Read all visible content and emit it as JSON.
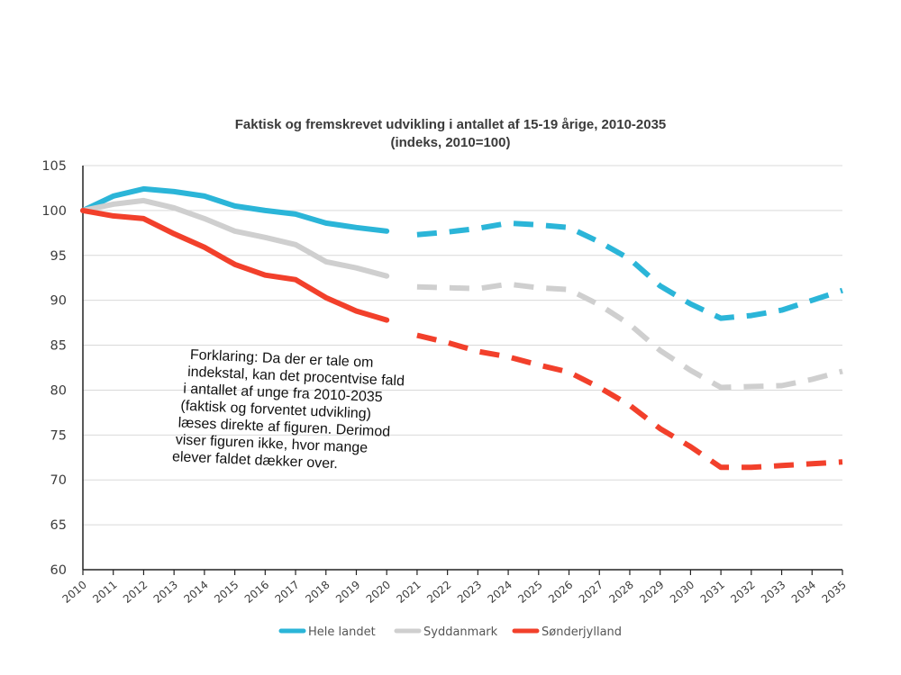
{
  "chart_data": {
    "type": "line",
    "title": "Faktisk og fremskrevet udvikling i antallet af 15-19 årige, 2010-2035",
    "subtitle": "(indeks, 2010=100)",
    "xlabel": "",
    "ylabel": "",
    "ylim": [
      60,
      105
    ],
    "yticks": [
      60,
      65,
      70,
      75,
      80,
      85,
      90,
      95,
      100,
      105
    ],
    "x": [
      2010,
      2011,
      2012,
      2013,
      2014,
      2015,
      2016,
      2017,
      2018,
      2019,
      2020,
      2021,
      2022,
      2023,
      2024,
      2025,
      2026,
      2027,
      2028,
      2029,
      2030,
      2031,
      2032,
      2033,
      2034,
      2035
    ],
    "x_labels": [
      "2010",
      "2011",
      "2012",
      "2013",
      "2014",
      "2015",
      "2016",
      "2017",
      "2018",
      "2019",
      "2020",
      "2021",
      "2022",
      "2023",
      "2024",
      "2025",
      "2026",
      "2027",
      "2028",
      "2029",
      "2030",
      "2031",
      "2032",
      "2033",
      "2034",
      "2035"
    ],
    "actual_until": 2020,
    "grid": true,
    "legend_position": "bottom",
    "series": [
      {
        "name": "Hele landet",
        "color": "#2bb5d8",
        "values": [
          100,
          101.6,
          102.4,
          102.1,
          101.6,
          100.5,
          100.0,
          99.6,
          98.6,
          98.1,
          97.7,
          97.3,
          97.6,
          98.0,
          98.6,
          98.4,
          98.1,
          96.5,
          94.6,
          91.6,
          89.6,
          88.0,
          88.3,
          88.9,
          90.0,
          91.1
        ]
      },
      {
        "name": "Syddanmark",
        "color": "#cfcfcf",
        "values": [
          100,
          100.7,
          101.1,
          100.3,
          99.1,
          97.7,
          97.0,
          96.2,
          94.3,
          93.6,
          92.7,
          91.5,
          91.4,
          91.3,
          91.8,
          91.4,
          91.2,
          89.5,
          87.3,
          84.4,
          82.2,
          80.3,
          80.4,
          80.5,
          81.2,
          82.1
        ]
      },
      {
        "name": "Sønderjylland",
        "color": "#f2402b",
        "values": [
          100,
          99.4,
          99.1,
          97.4,
          95.9,
          94.0,
          92.8,
          92.3,
          90.3,
          88.8,
          87.8,
          86.1,
          85.3,
          84.3,
          83.7,
          82.8,
          82.0,
          80.3,
          78.3,
          75.7,
          73.7,
          71.4,
          71.4,
          71.6,
          71.8,
          72.0
        ]
      }
    ]
  },
  "note": {
    "lines": [
      "Forklaring: Da der er tale om",
      "indekstal, kan det procentvise fald",
      "i antallet af unge fra 2010-2035",
      "(faktisk og forventet udvikling)",
      "læses direkte af figuren. Derimod",
      "viser figuren ikke, hvor mange",
      "elever faldet dækker over."
    ]
  }
}
